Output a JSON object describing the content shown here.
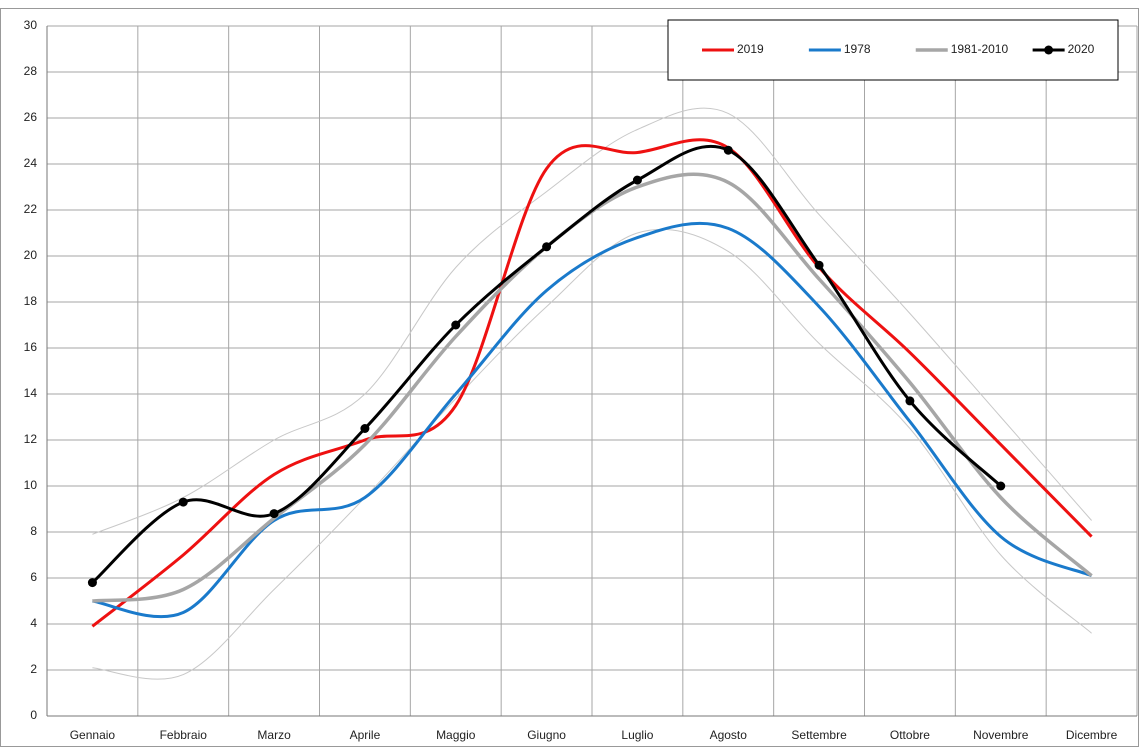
{
  "chart_data": {
    "type": "line",
    "categories": [
      "Gennaio",
      "Febbraio",
      "Marzo",
      "Aprile",
      "Maggio",
      "Giugno",
      "Luglio",
      "Agosto",
      "Settembre",
      "Ottobre",
      "Novembre",
      "Dicembre"
    ],
    "ylim": [
      0,
      30
    ],
    "yticks": [
      0,
      2,
      4,
      6,
      8,
      10,
      12,
      14,
      16,
      18,
      20,
      22,
      24,
      26,
      28,
      30
    ],
    "grid": true,
    "smooth": true,
    "legend": "top-right",
    "series": [
      {
        "color": "#c8c8c8",
        "width": 1,
        "values": [
          7.9,
          9.5,
          12.0,
          14.0,
          19.5,
          22.8,
          25.5,
          26.2,
          21.8,
          17.5,
          13.0,
          8.5
        ]
      },
      {
        "color": "#c8c8c8",
        "width": 1,
        "values": [
          2.1,
          1.8,
          5.5,
          9.5,
          13.8,
          17.8,
          21.0,
          20.2,
          16.2,
          12.5,
          7.0,
          3.6
        ]
      },
      {
        "name": "2019",
        "color": "#ee1111",
        "width": 3,
        "values": [
          3.9,
          7.0,
          10.5,
          12.0,
          13.5,
          23.8,
          24.5,
          24.7,
          19.5,
          15.8,
          11.8,
          7.8
        ]
      },
      {
        "name": "1978",
        "color": "#1a7acb",
        "width": 3,
        "values": [
          5.0,
          4.5,
          8.5,
          9.5,
          14.0,
          18.5,
          20.8,
          21.2,
          17.8,
          12.8,
          7.8,
          6.1
        ]
      },
      {
        "name": "1981-2010",
        "color": "#a6a6a6",
        "width": 3.5,
        "values": [
          5.0,
          5.5,
          8.6,
          11.8,
          16.5,
          20.4,
          23.0,
          23.2,
          19.0,
          14.5,
          9.5,
          6.1
        ]
      },
      {
        "name": "2020",
        "color": "#000000",
        "width": 3,
        "markers": true,
        "values": [
          5.8,
          9.3,
          8.8,
          12.5,
          17.0,
          20.4,
          23.3,
          24.6,
          19.6,
          13.7,
          10.0,
          null
        ]
      }
    ]
  }
}
